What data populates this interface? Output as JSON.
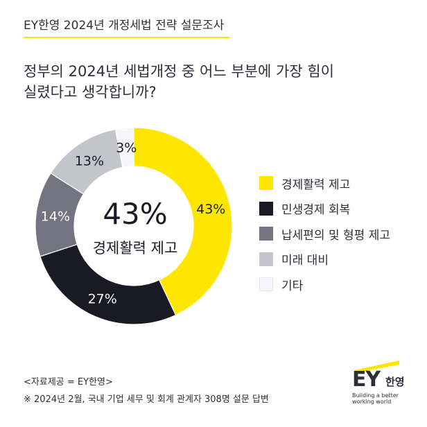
{
  "header": {
    "title": "EY한영 2024년 개정세법 전략 설문조사"
  },
  "question": {
    "line1": "정부의 2024년 세법개정 중 어느 부분에 가장 힘이",
    "line2": "실렸다고 생각합니까?"
  },
  "center": {
    "percent": "43%",
    "label": "경제활력 제고"
  },
  "chart_data": {
    "type": "pie",
    "categories": [
      "경제활력 제고",
      "민생경제 회복",
      "납세편의 및 형평 제고",
      "미래 대비",
      "기타"
    ],
    "values": [
      43,
      27,
      14,
      13,
      3
    ],
    "labels": [
      "43%",
      "27%",
      "14%",
      "13%",
      "3%"
    ],
    "colors": [
      "#ffe600",
      "#1a1a24",
      "#747480",
      "#c4c4cd",
      "#f6f6fa"
    ],
    "label_colors": [
      "#1a1a24",
      "#ffffff",
      "#ffffff",
      "#1a1a24",
      "#1a1a24"
    ],
    "legend_position": "right"
  },
  "footer": {
    "source": "<자료제공 = EY한영>",
    "note": "※ 2024년 2월, 국내 기업 세무 및 회계 관계자 308명 설문 답변"
  },
  "logo": {
    "brand": "EY",
    "korean": "한영",
    "tagline1": "Building a better",
    "tagline2": "working world"
  }
}
